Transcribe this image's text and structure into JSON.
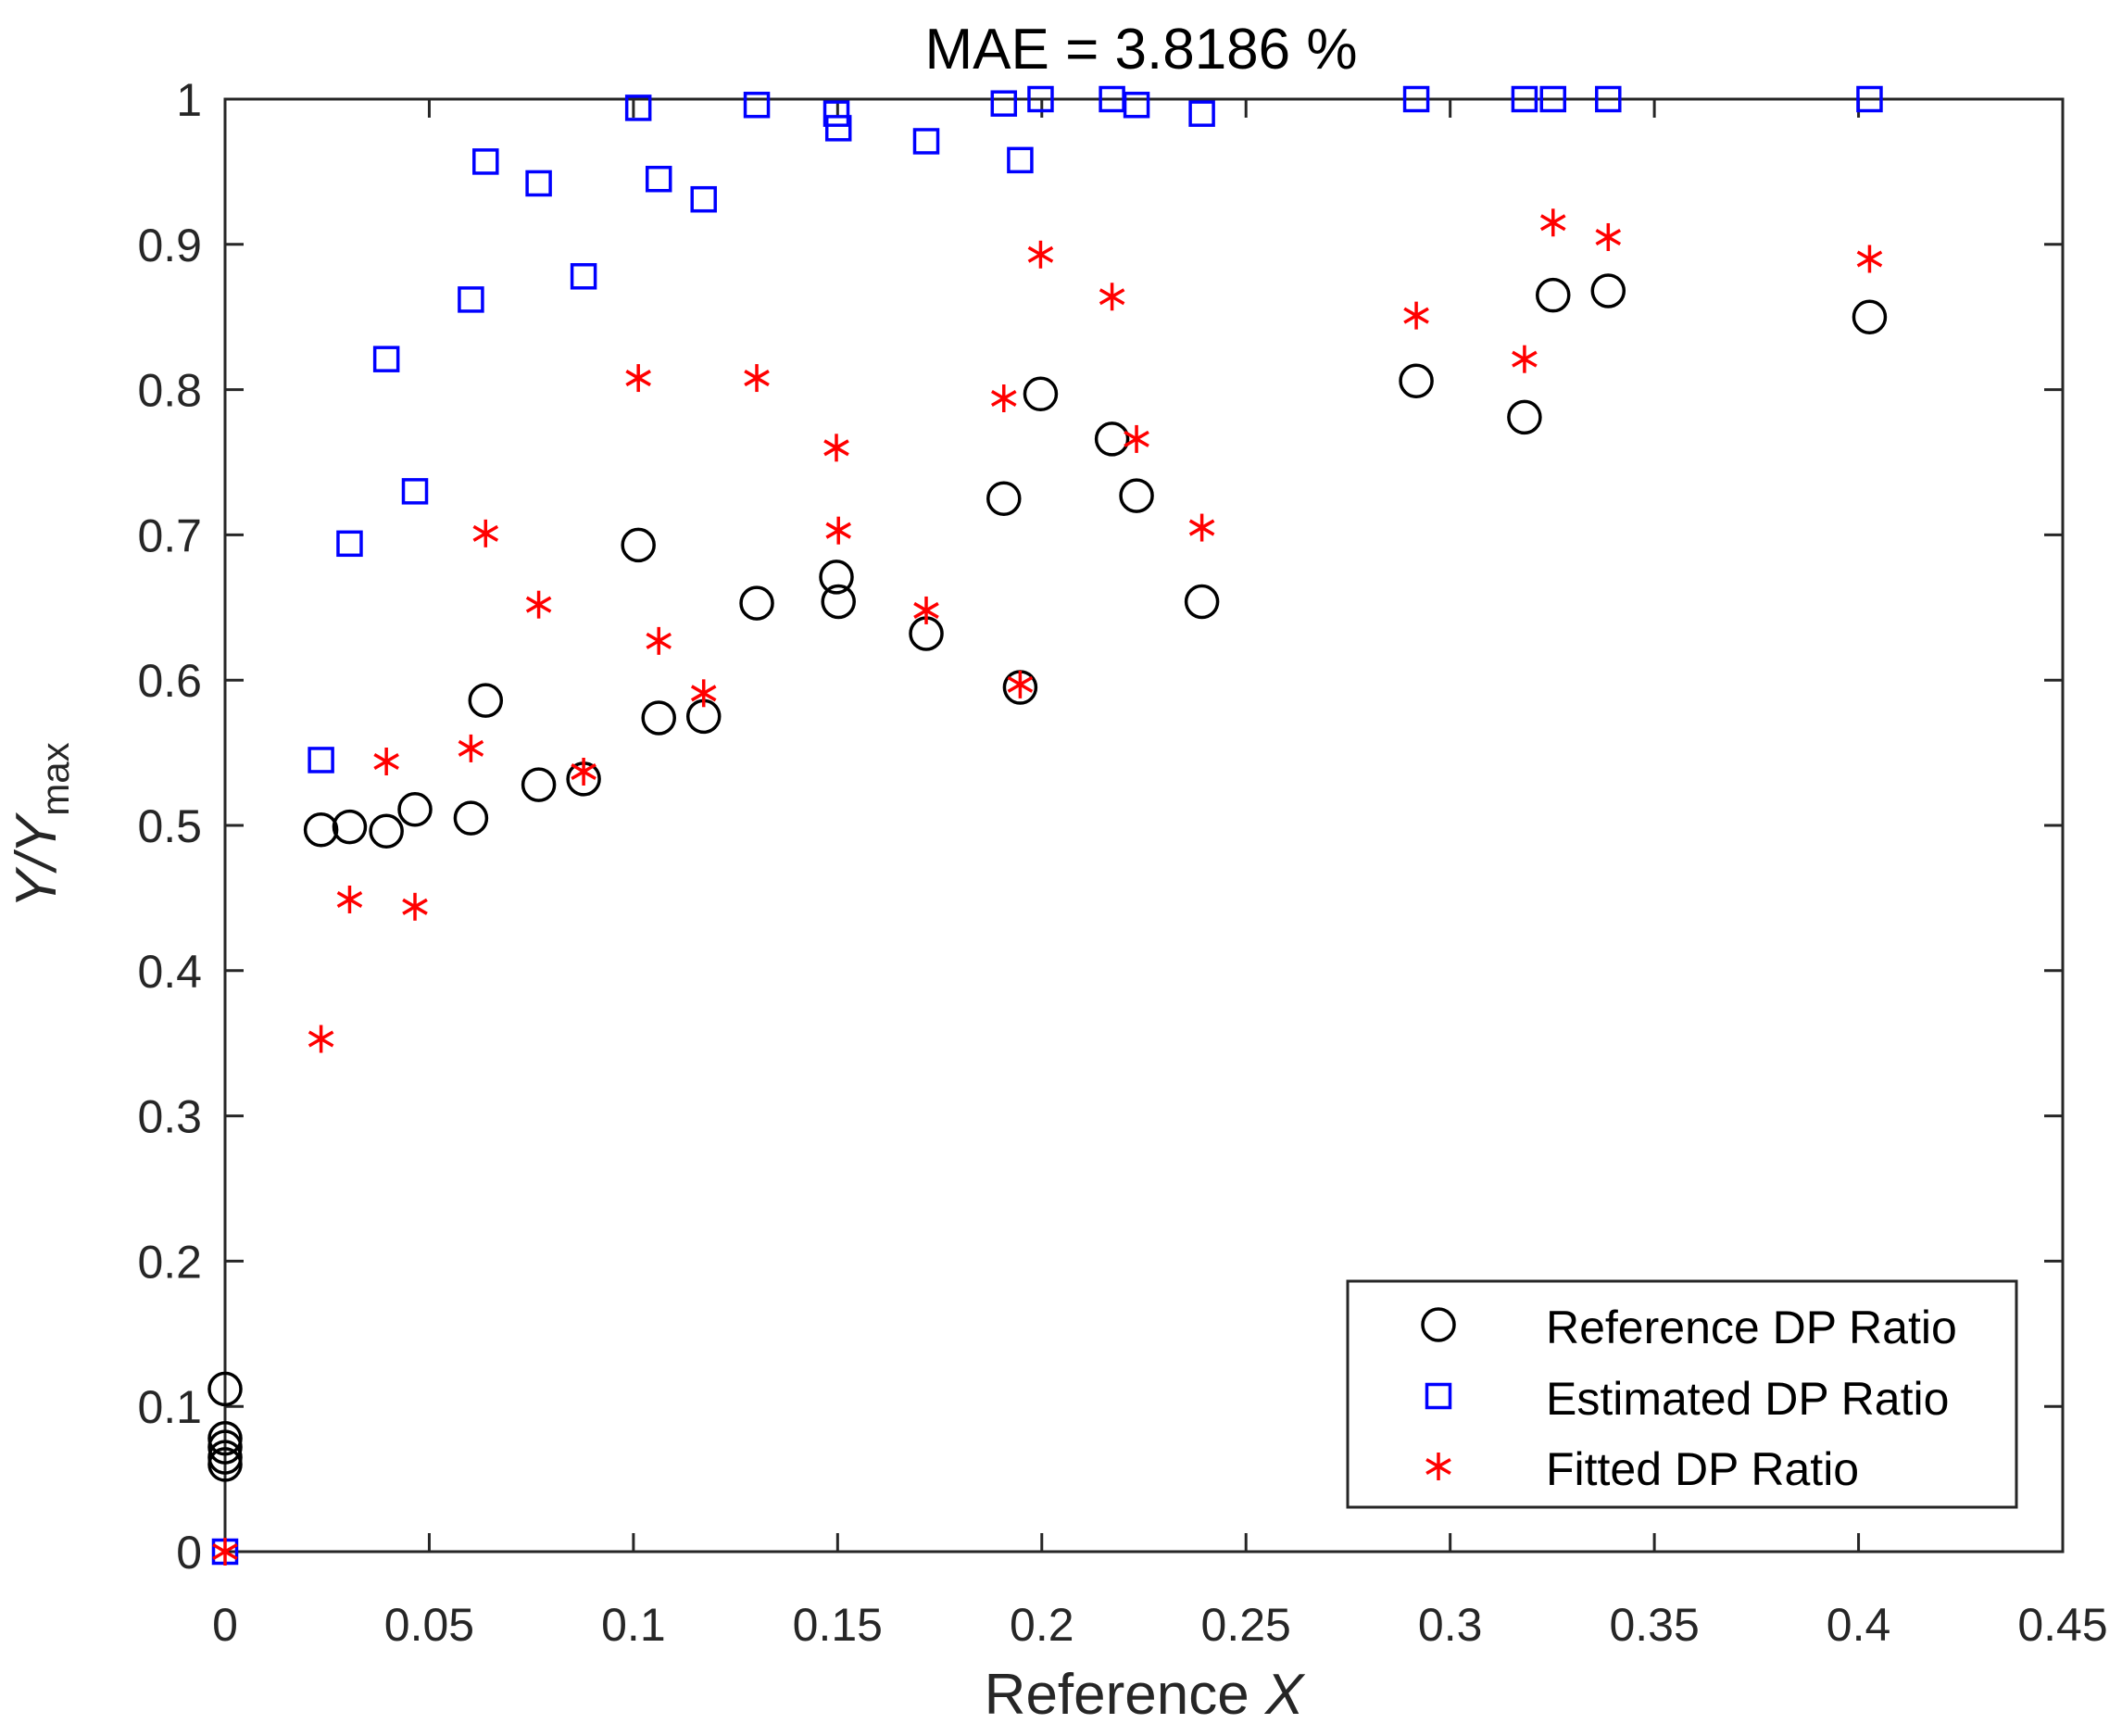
{
  "chart_data": {
    "type": "scatter",
    "title": "MAE = 3.8186 %",
    "xlabel": "Reference X",
    "xlabel_prefix": "Reference ",
    "xlabel_var": "X",
    "ylabel": "Y/Ymax",
    "ylabel_main": "Y/Y",
    "ylabel_sub": "max",
    "xlim": [
      0,
      0.45
    ],
    "ylim": [
      0,
      1
    ],
    "xticks": [
      0,
      0.05,
      0.1,
      0.15,
      0.2,
      0.25,
      0.3,
      0.35,
      0.4,
      0.45
    ],
    "xtick_labels": [
      "0",
      "0.05",
      "0.1",
      "0.15",
      "0.2",
      "0.25",
      "0.3",
      "0.35",
      "0.4",
      "0.45"
    ],
    "yticks": [
      0,
      0.1,
      0.2,
      0.3,
      0.4,
      0.5,
      0.6,
      0.7,
      0.8,
      0.9,
      1
    ],
    "ytick_labels": [
      "0",
      "0.1",
      "0.2",
      "0.3",
      "0.4",
      "0.5",
      "0.6",
      "0.7",
      "0.8",
      "0.9",
      "1"
    ],
    "grid": false,
    "legend_position": "bottom-right",
    "series": [
      {
        "name": "Reference DP Ratio",
        "marker": "circle",
        "color": "#000000",
        "x": [
          0,
          0,
          0,
          0,
          0,
          0.0235,
          0.0305,
          0.0395,
          0.0465,
          0.0602,
          0.0638,
          0.0768,
          0.0878,
          0.1012,
          0.1062,
          0.1172,
          0.1302,
          0.1497,
          0.1502,
          0.1717,
          0.1907,
          0.1947,
          0.1997,
          0.2172,
          0.2232,
          0.2392,
          0.2917,
          0.3182,
          0.3252,
          0.3387,
          0.4027
        ],
        "y": [
          0.112,
          0.078,
          0.072,
          0.065,
          0.06,
          0.497,
          0.499,
          0.496,
          0.511,
          0.505,
          0.586,
          0.528,
          0.532,
          0.693,
          0.574,
          0.575,
          0.653,
          0.671,
          0.654,
          0.632,
          0.725,
          0.595,
          0.797,
          0.766,
          0.727,
          0.654,
          0.806,
          0.781,
          0.865,
          0.868,
          0.85
        ]
      },
      {
        "name": "Estimated DP Ratio",
        "marker": "square",
        "color": "#0000ff",
        "x": [
          0,
          0.0235,
          0.0305,
          0.0395,
          0.0465,
          0.0602,
          0.0638,
          0.0768,
          0.0878,
          0.1012,
          0.1062,
          0.1172,
          0.1302,
          0.1497,
          0.1502,
          0.1717,
          0.1907,
          0.1947,
          0.1997,
          0.2172,
          0.2232,
          0.2392,
          0.2917,
          0.3182,
          0.3252,
          0.3387,
          0.4027
        ],
        "y": [
          0.0,
          0.545,
          0.694,
          0.821,
          0.73,
          0.862,
          0.957,
          0.942,
          0.878,
          0.994,
          0.945,
          0.931,
          0.996,
          0.99,
          0.98,
          0.971,
          0.997,
          0.958,
          1.0,
          1.0,
          0.996,
          0.99,
          1.0,
          1.0,
          1.0,
          1.0,
          1.0
        ]
      },
      {
        "name": "Fitted DP Ratio",
        "marker": "asterisk",
        "color": "#ff0000",
        "x": [
          0,
          0.0235,
          0.0305,
          0.0395,
          0.0465,
          0.0602,
          0.0638,
          0.0768,
          0.0878,
          0.1012,
          0.1062,
          0.1172,
          0.1302,
          0.1497,
          0.1502,
          0.1717,
          0.1907,
          0.1947,
          0.1997,
          0.2172,
          0.2232,
          0.2392,
          0.2917,
          0.3182,
          0.3252,
          0.3387,
          0.4027
        ],
        "y": [
          0.0,
          0.353,
          0.449,
          0.544,
          0.444,
          0.553,
          0.701,
          0.652,
          0.537,
          0.808,
          0.627,
          0.591,
          0.808,
          0.76,
          0.703,
          0.648,
          0.794,
          0.597,
          0.893,
          0.864,
          0.766,
          0.705,
          0.851,
          0.821,
          0.915,
          0.905,
          0.89
        ]
      }
    ]
  }
}
